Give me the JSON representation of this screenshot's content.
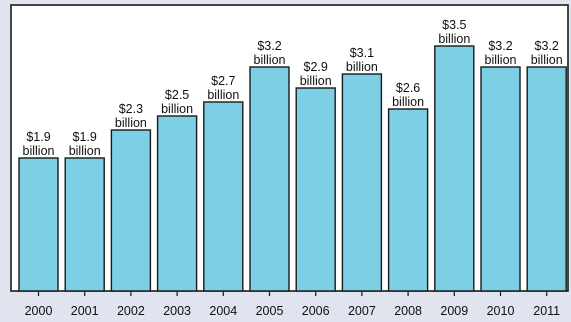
{
  "chart_data": {
    "type": "bar",
    "title": "",
    "xlabel": "",
    "ylabel": "",
    "categories": [
      "2000",
      "2001",
      "2002",
      "2003",
      "2004",
      "2005",
      "2006",
      "2007",
      "2008",
      "2009",
      "2010",
      "2011"
    ],
    "values": [
      1.9,
      1.9,
      2.3,
      2.5,
      2.7,
      3.2,
      2.9,
      3.1,
      2.6,
      3.5,
      3.2,
      3.2
    ],
    "labels": [
      "$1.9",
      "$1.9",
      "$2.3",
      "$2.5",
      "$2.7",
      "$3.2",
      "$2.9",
      "$3.1",
      "$2.6",
      "$3.5",
      "$3.2",
      "$3.2"
    ],
    "unit_label": "billion",
    "ylim": [
      0,
      3.6
    ],
    "grid": false,
    "bar_color": "#7ccfe4",
    "frame_color": "#1a1a1a",
    "background_color": "#dfe4ee"
  }
}
